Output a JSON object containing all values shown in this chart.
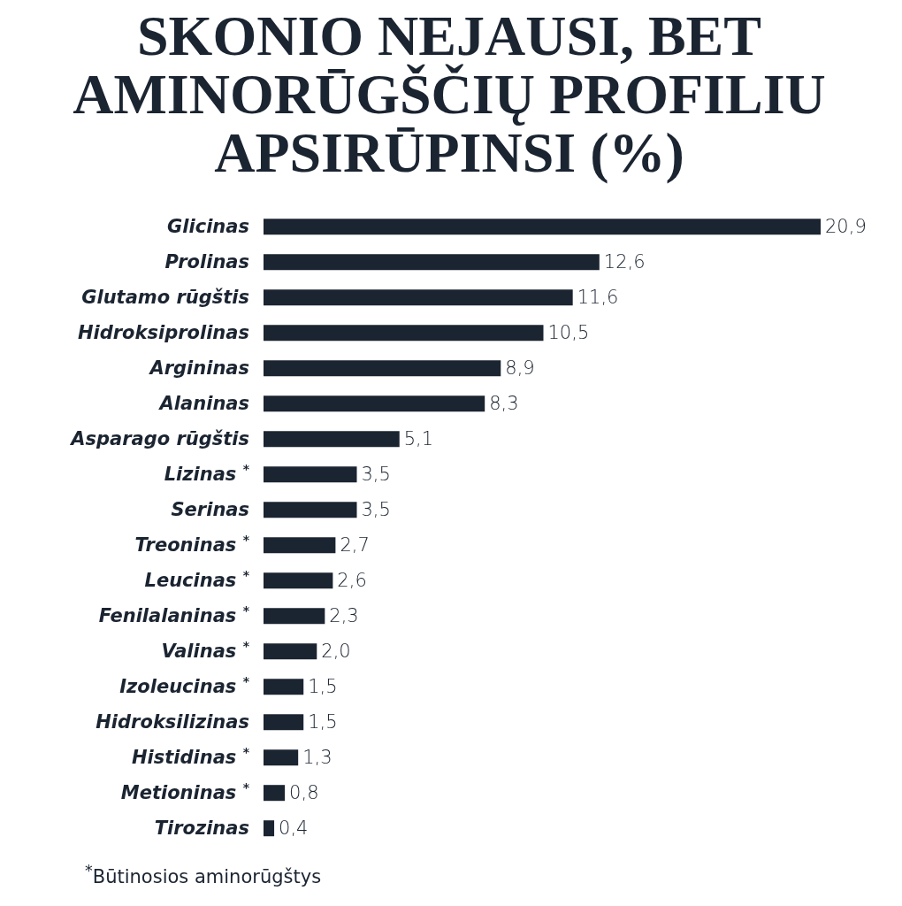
{
  "chart_data": {
    "type": "bar",
    "orientation": "horizontal",
    "title": "SKONIO NEJAUSI, BET AMINORŪGŠČIŲ PROFILIU APSIRŪPINSI (%)",
    "categories": [
      "Glicinas",
      "Prolinas",
      "Glutamo rūgštis",
      "Hidroksiprolinas",
      "Argininas",
      "Alaninas",
      "Asparago rūgštis",
      "Lizinas $^{*}$",
      "Serinas",
      "Treoninas $^{*}$",
      "Leucinas $^{*}$",
      "Fenilalaninas $^{*}$",
      "Valinas $^{*}$",
      "Izoleucinas $^{*}$",
      "Hidroksilizinas",
      "Histidinas $^{*}$",
      "Metioninas $^{*}$",
      "Tirozinas"
    ],
    "values": [
      20.9,
      12.6,
      11.6,
      10.5,
      8.9,
      8.3,
      5.1,
      3.5,
      3.5,
      2.7,
      2.6,
      2.3,
      2.0,
      1.5,
      1.5,
      1.3,
      0.8,
      0.4
    ],
    "value_labels": [
      "20,9",
      "12,6",
      "11,6",
      "10,5",
      "8,9",
      "8,3",
      "5,1",
      "3,5",
      "3,5",
      "2,7",
      "2,6",
      "2,3",
      "2,0",
      "1,5",
      "1,5",
      "1,3",
      "0,8",
      "0,4"
    ],
    "color": "#1b2431",
    "annotations": [
      "$^{*}$Būtinosios aminorūgštys"
    ]
  }
}
